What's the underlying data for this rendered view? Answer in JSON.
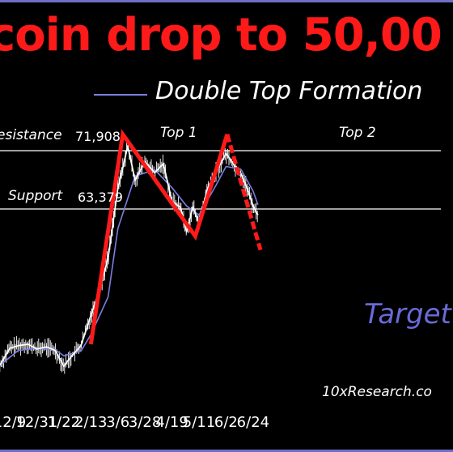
{
  "title": "coin drop to 50,00",
  "legend": {
    "label": "Double Top Formation",
    "line_color": "#7b7fe0"
  },
  "levels": {
    "resistance": {
      "label": "esistance",
      "value": "71,908",
      "color": "#ffffff"
    },
    "support": {
      "label": "Support",
      "value": "63,379",
      "color": "#ffffff"
    }
  },
  "annotations": {
    "top1": "Top 1",
    "top2": "Top 2",
    "target": "Target",
    "source": "10xResearch.co"
  },
  "colors": {
    "pattern": "#ff1a1a",
    "moving_avg": "#7b7fe0",
    "price": "#ffffff",
    "frame": "#6e6ec8"
  },
  "chart_data": {
    "type": "line",
    "title": "coin drop to 50,00",
    "x_ticks": [
      "12/9",
      "12/31",
      "1/22",
      "2/13",
      "3/6",
      "3/28",
      "4/19",
      "5/11",
      "6/2",
      "6/24"
    ],
    "y_unit": "USD",
    "resistance": 71908,
    "support": 63379,
    "series": [
      {
        "name": "",
        "kind": "price",
        "x": [
          "12/1",
          "12/9",
          "12/16",
          "12/24",
          "12/31",
          "1/8",
          "1/15",
          "1/22",
          "1/29",
          "2/5",
          "2/13",
          "2/20",
          "2/27",
          "3/6",
          "3/10",
          "3/14",
          "3/20",
          "3/28",
          "4/5",
          "4/12",
          "4/19",
          "4/26",
          "5/1",
          "5/6",
          "5/11",
          "5/18",
          "5/25",
          "6/2",
          "6/9",
          "6/14",
          "6/20",
          "6/24",
          "6/28"
        ],
        "y": [
          40500,
          43000,
          43400,
          43600,
          42900,
          43200,
          42700,
          40400,
          42000,
          43400,
          47800,
          51400,
          56200,
          66400,
          69400,
          72600,
          67600,
          70300,
          68700,
          70000,
          64500,
          63600,
          60000,
          63700,
          61300,
          66400,
          68800,
          71500,
          69700,
          68600,
          66000,
          63800,
          62500
        ]
      },
      {
        "name": "Double Top Formation",
        "kind": "moving-average",
        "x": [
          "12/1",
          "12/16",
          "12/31",
          "1/15",
          "1/22",
          "2/5",
          "2/13",
          "2/27",
          "3/6",
          "3/20",
          "4/5",
          "4/19",
          "5/1",
          "5/11",
          "5/25",
          "6/2",
          "6/14",
          "6/24",
          "6/28"
        ],
        "y": [
          40500,
          42700,
          43000,
          42800,
          41900,
          42600,
          45000,
          50500,
          60500,
          68200,
          69100,
          66500,
          63800,
          62500,
          66900,
          69600,
          69200,
          66000,
          64000
        ]
      },
      {
        "name": "Double Top Formation",
        "kind": "pattern",
        "x": [
          "2/13",
          "3/10",
          "5/8",
          "6/3"
        ],
        "y": [
          43600,
          74300,
          59400,
          74300
        ]
      },
      {
        "name": "Target",
        "kind": "projection",
        "x": [
          "6/3",
          "6/30"
        ],
        "y": [
          74300,
          57400
        ]
      }
    ],
    "ylim": [
      37000,
      80000
    ],
    "grid": false,
    "legend_position": "top"
  }
}
